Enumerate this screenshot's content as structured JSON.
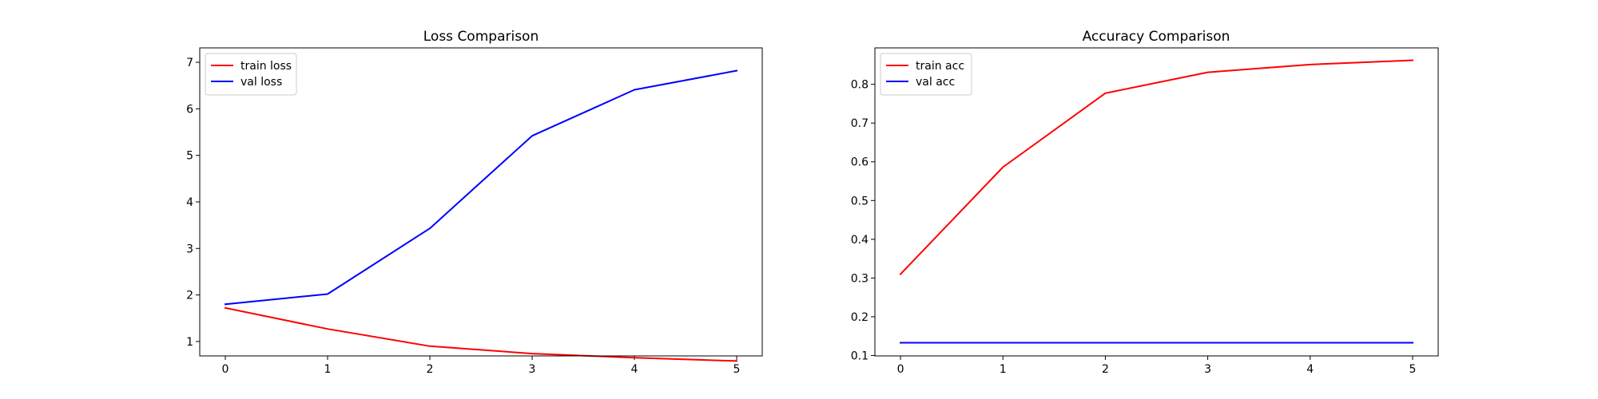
{
  "figure": {
    "background": "#ffffff"
  },
  "chart_data": [
    {
      "type": "line",
      "title": "Loss Comparison",
      "xlabel": "",
      "ylabel": "",
      "x": [
        0,
        1,
        2,
        3,
        4,
        5
      ],
      "xticks": [
        "0",
        "1",
        "2",
        "3",
        "4",
        "5"
      ],
      "yticks": [
        "1",
        "2",
        "3",
        "4",
        "5",
        "6",
        "7"
      ],
      "xlim": [
        -0.25,
        5.25
      ],
      "ylim": [
        0.69,
        7.31
      ],
      "grid": false,
      "legend_position": "upper-left",
      "series": [
        {
          "name": "train loss",
          "color": "#ff0000",
          "values": [
            1.72,
            1.27,
            0.9,
            0.74,
            0.65,
            0.58
          ]
        },
        {
          "name": "val loss",
          "color": "#0000ff",
          "values": [
            1.8,
            2.02,
            3.43,
            5.42,
            6.41,
            6.82
          ]
        }
      ]
    },
    {
      "type": "line",
      "title": "Accuracy Comparison",
      "xlabel": "",
      "ylabel": "",
      "x": [
        0,
        1,
        2,
        3,
        4,
        5
      ],
      "xticks": [
        "0",
        "1",
        "2",
        "3",
        "4",
        "5"
      ],
      "yticks": [
        "0.1",
        "0.2",
        "0.3",
        "0.4",
        "0.5",
        "0.6",
        "0.7",
        "0.8"
      ],
      "xlim": [
        -0.25,
        5.25
      ],
      "ylim": [
        0.099,
        0.894
      ],
      "grid": false,
      "legend_position": "upper-left",
      "series": [
        {
          "name": "train acc",
          "color": "#ff0000",
          "values": [
            0.31,
            0.586,
            0.777,
            0.831,
            0.851,
            0.862
          ]
        },
        {
          "name": "val acc",
          "color": "#0000ff",
          "values": [
            0.133,
            0.133,
            0.133,
            0.133,
            0.133,
            0.133
          ]
        }
      ]
    }
  ]
}
